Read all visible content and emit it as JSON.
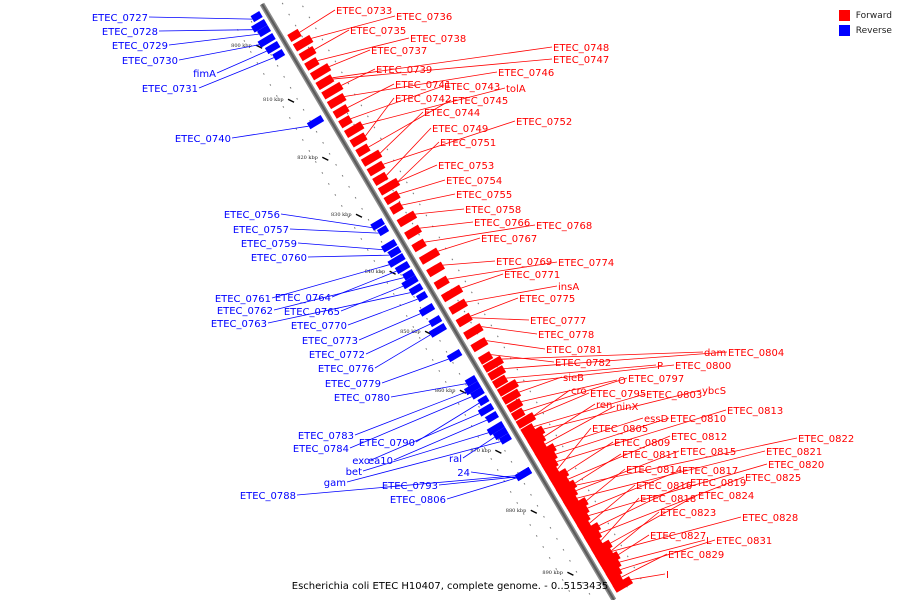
{
  "legend": {
    "forward": {
      "label": "Forward",
      "color": "#ff0000"
    },
    "reverse": {
      "label": "Reverse",
      "color": "#0000ff"
    }
  },
  "caption": "Escherichia coli ETEC H10407, complete genome. - 0..5153435",
  "ticks": [
    "800 kbp",
    "810 kbp",
    "820 kbp",
    "830 kbp",
    "840 kbp",
    "850 kbp",
    "860 kbp",
    "870 kbp",
    "880 kbp",
    "890 kbp"
  ],
  "forward_labels": [
    "ETEC_0733",
    "ETEC_0736",
    "ETEC_0735",
    "ETEC_0738",
    "ETEC_0737",
    "ETEC_0748",
    "ETEC_0747",
    "ETEC_0739",
    "ETEC_0746",
    "ETEC_0741",
    "ETEC_0743",
    "tolA",
    "ETEC_0742",
    "ETEC_0745",
    "ETEC_0744",
    "ETEC_0752",
    "ETEC_0749",
    "ETEC_0751",
    "ETEC_0753",
    "ETEC_0754",
    "ETEC_0755",
    "ETEC_0758",
    "ETEC_0766",
    "ETEC_0768",
    "ETEC_0767",
    "ETEC_0769",
    "ETEC_0774",
    "ETEC_0771",
    "insA",
    "ETEC_0775",
    "ETEC_0777",
    "ETEC_0778",
    "ETEC_0781",
    "ETEC_0782",
    "dam",
    "ETEC_0804",
    "P",
    "ETEC_0800",
    "sieB",
    "O",
    "ETEC_0797",
    "cro",
    "ETEC_0795",
    "ETEC_0803",
    "ybcS",
    "ren",
    "ninX",
    "essD",
    "ETEC_0810",
    "ETEC_0813",
    "ETEC_0805",
    "ETEC_0809",
    "ETEC_0812",
    "ETEC_0822",
    "ETEC_0811",
    "ETEC_0815",
    "ETEC_0821",
    "ETEC_0814",
    "ETEC_0817",
    "ETEC_0820",
    "ETEC_0816",
    "ETEC_0819",
    "ETEC_0825",
    "ETEC_0818",
    "ETEC_0824",
    "ETEC_0823",
    "ETEC_0828",
    "ETEC_0827",
    "L",
    "ETEC_0831",
    "ETEC_0829",
    "I"
  ],
  "reverse_labels": [
    "ETEC_0727",
    "ETEC_0728",
    "ETEC_0729",
    "ETEC_0730",
    "fimA",
    "ETEC_0731",
    "ETEC_0740",
    "ETEC_0756",
    "ETEC_0757",
    "ETEC_0759",
    "ETEC_0760",
    "ETEC_0761",
    "ETEC_0764",
    "ETEC_0762",
    "ETEC_0765",
    "ETEC_0763",
    "ETEC_0770",
    "ETEC_0773",
    "ETEC_0772",
    "ETEC_0776",
    "ETEC_0779",
    "ETEC_0780",
    "ETEC_0783",
    "ETEC_0784",
    "ETEC_0790",
    "exo",
    "ea10",
    "bet",
    "ral",
    "gam",
    "24",
    "ETEC_0793",
    "ETEC_0788",
    "ETEC_0806"
  ]
}
